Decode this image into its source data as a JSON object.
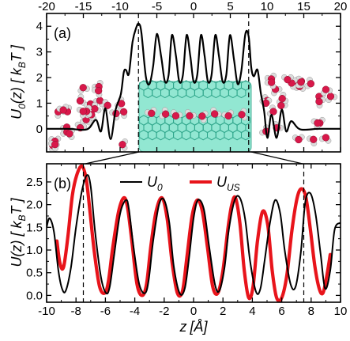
{
  "colors": {
    "u0": "#000000",
    "uus": "#e8141b",
    "graphene_fill": "#7fe3cb",
    "graphene_edge": "#2ea58a",
    "water_oxygen": "#d8184a",
    "water_hydrogen": "#dcdcdc"
  },
  "chart_data": [
    {
      "id": "panel-a",
      "type": "line",
      "panel_label": "(a)",
      "xlabel": "",
      "ylabel_main": "U",
      "ylabel_sub": "0",
      "ylabel_tail": "(z)  [ k",
      "ylabel_unit_sub": "B",
      "ylabel_unit_tail": "T ]",
      "xlim": [
        -20,
        20
      ],
      "ylim": [
        -0.9,
        4.5
      ],
      "x_ticks": [
        -20,
        -15,
        -10,
        -5,
        0,
        5,
        10,
        15,
        20
      ],
      "x_tick_labels": [
        "-20",
        "-15",
        "-10",
        "-5",
        "0",
        "5",
        "10",
        "15",
        "20"
      ],
      "y_ticks": [
        0,
        1,
        2,
        3,
        4
      ],
      "y_tick_labels": [
        "0",
        "1",
        "2",
        "3",
        "4"
      ],
      "vlines": [
        -7.5,
        7.5
      ],
      "series": [
        {
          "key": "U0",
          "x": [
            -20,
            -17,
            -14.5,
            -13.3,
            -12.6,
            -12.0,
            -11.3,
            -10.6,
            -9.9,
            -9.5,
            -9.2,
            -8.8,
            -8.3,
            -7.8,
            -7.45,
            -7.1,
            -6.5,
            -6.0,
            -5.5,
            -5.0,
            -4.4,
            -3.9,
            -3.4,
            -2.95,
            -2.4,
            -1.95,
            -1.45,
            -0.95,
            -0.45,
            0.0,
            0.5,
            1.0,
            1.5,
            1.95,
            2.45,
            2.95,
            3.45,
            3.95,
            4.45,
            4.95,
            5.5,
            6.0,
            6.5,
            7.05,
            7.5,
            7.85,
            8.2,
            8.7,
            9.15,
            9.6,
            10.05,
            10.6,
            11.3,
            12.0,
            12.6,
            13.3,
            14.5,
            17,
            20
          ],
          "y": [
            0,
            0,
            -0.02,
            0.35,
            -0.1,
            0.8,
            -0.4,
            0.75,
            1.35,
            2.2,
            2.3,
            2.15,
            3.4,
            3.95,
            4.1,
            3.75,
            2.05,
            1.75,
            2.45,
            3.7,
            2.8,
            1.85,
            2.1,
            3.65,
            2.85,
            1.85,
            2.1,
            3.65,
            2.85,
            1.85,
            2.1,
            3.65,
            2.85,
            1.85,
            2.1,
            3.65,
            2.85,
            1.85,
            2.1,
            3.65,
            2.7,
            1.75,
            2.25,
            3.7,
            3.6,
            2.4,
            2.05,
            2.3,
            1.4,
            0.7,
            -0.35,
            0.55,
            -0.35,
            0.75,
            -0.1,
            0.3,
            -0.02,
            0,
            0
          ]
        }
      ]
    },
    {
      "id": "panel-b",
      "type": "line",
      "panel_label": "(b)",
      "xlabel_main": "z",
      "xlabel_unit": "[Å]",
      "ylabel_main": "U(z)  [ k",
      "ylabel_unit_sub": "B",
      "ylabel_unit_tail": "T ]",
      "xlim": [
        -10,
        10
      ],
      "ylim": [
        -0.15,
        2.9
      ],
      "x_ticks": [
        -10,
        -8,
        -6,
        -4,
        -2,
        0,
        2,
        4,
        6,
        8,
        10
      ],
      "x_tick_labels": [
        "-10",
        "-8",
        "-6",
        "-4",
        "-2",
        "0",
        "2",
        "4",
        "6",
        "8",
        "10"
      ],
      "y_ticks": [
        0.0,
        0.5,
        1.0,
        1.5,
        2.0,
        2.5
      ],
      "y_tick_labels": [
        "0.0",
        "0.5",
        "1.0",
        "1.5",
        "2.0",
        "2.5"
      ],
      "vlines": [
        -7.5,
        7.5
      ],
      "legend": {
        "position": "top-right"
      },
      "series": [
        {
          "key": "U0",
          "name_main": "U",
          "name_sub": "0",
          "x": [
            -10.0,
            -9.8,
            -9.5,
            -9.2,
            -8.95,
            -8.7,
            -8.35,
            -8.0,
            -7.6,
            -7.25,
            -7.0,
            -6.7,
            -6.3,
            -5.95,
            -5.7,
            -5.4,
            -5.0,
            -4.6,
            -4.4,
            -4.1,
            -3.7,
            -3.3,
            -3.05,
            -2.75,
            -2.35,
            -2.0,
            -1.65,
            -1.35,
            -0.95,
            -0.6,
            -0.3,
            0.0,
            0.3,
            0.7,
            1.05,
            1.45,
            1.75,
            2.1,
            2.4,
            2.8,
            3.15,
            3.5,
            3.85,
            4.25,
            4.55,
            4.85,
            5.2,
            5.55,
            5.9,
            6.2,
            6.6,
            6.95,
            7.3,
            7.6,
            7.95,
            8.3,
            8.65,
            8.95,
            9.3,
            9.6,
            10.0
          ],
          "y": [
            1.5,
            1.7,
            1.4,
            0.55,
            0.15,
            0.1,
            0.6,
            1.5,
            2.3,
            2.65,
            2.4,
            1.4,
            0.4,
            0.05,
            0.2,
            0.9,
            1.8,
            2.1,
            1.9,
            1.1,
            0.25,
            0.05,
            0.35,
            1.2,
            2.0,
            2.1,
            1.6,
            0.65,
            0.05,
            0.15,
            0.85,
            1.7,
            2.1,
            1.9,
            1.1,
            0.25,
            0.1,
            0.6,
            1.45,
            2.1,
            2.15,
            1.7,
            0.75,
            0.08,
            0.15,
            0.8,
            1.6,
            2.1,
            1.8,
            1.0,
            0.25,
            0.2,
            0.95,
            2.05,
            2.25,
            1.8,
            0.9,
            0.15,
            0.55,
            1.45,
            1.6
          ]
        },
        {
          "key": "UUS",
          "name_main": "U",
          "name_sub": "US",
          "x": [
            -9.3,
            -9.1,
            -8.85,
            -8.55,
            -8.25,
            -7.95,
            -7.6,
            -7.3,
            -7.05,
            -6.75,
            -6.4,
            -6.05,
            -5.8,
            -5.5,
            -5.1,
            -4.75,
            -4.5,
            -4.2,
            -3.85,
            -3.5,
            -3.2,
            -2.9,
            -2.55,
            -2.15,
            -1.8,
            -1.45,
            -1.1,
            -0.75,
            -0.45,
            -0.1,
            0.25,
            0.6,
            0.95,
            1.3,
            1.65,
            2.0,
            2.35,
            2.6,
            2.85,
            3.15,
            3.45,
            3.75,
            4.05,
            4.35,
            4.7,
            5.05,
            5.35,
            5.65,
            6.0,
            6.35,
            6.7,
            7.05,
            7.35,
            7.65,
            7.95,
            8.25,
            8.55,
            8.8,
            9.05,
            9.3
          ],
          "y": [
            1.2,
            0.72,
            0.62,
            1.3,
            2.2,
            2.65,
            2.85,
            2.55,
            1.85,
            0.95,
            0.2,
            0.05,
            0.3,
            1.05,
            1.85,
            2.15,
            1.95,
            1.2,
            0.25,
            0.0,
            0.25,
            1.1,
            1.85,
            2.15,
            1.7,
            0.7,
            0.05,
            0.1,
            0.85,
            1.75,
            2.1,
            1.85,
            1.05,
            0.2,
            0.05,
            0.55,
            1.5,
            2.0,
            2.15,
            1.6,
            0.55,
            -0.05,
            0.2,
            1.2,
            1.85,
            1.55,
            0.55,
            -0.05,
            -0.05,
            0.45,
            1.45,
            2.15,
            2.35,
            2.15,
            1.45,
            0.65,
            0.15,
            0.05,
            0.4,
            0.9
          ]
        }
      ]
    }
  ]
}
